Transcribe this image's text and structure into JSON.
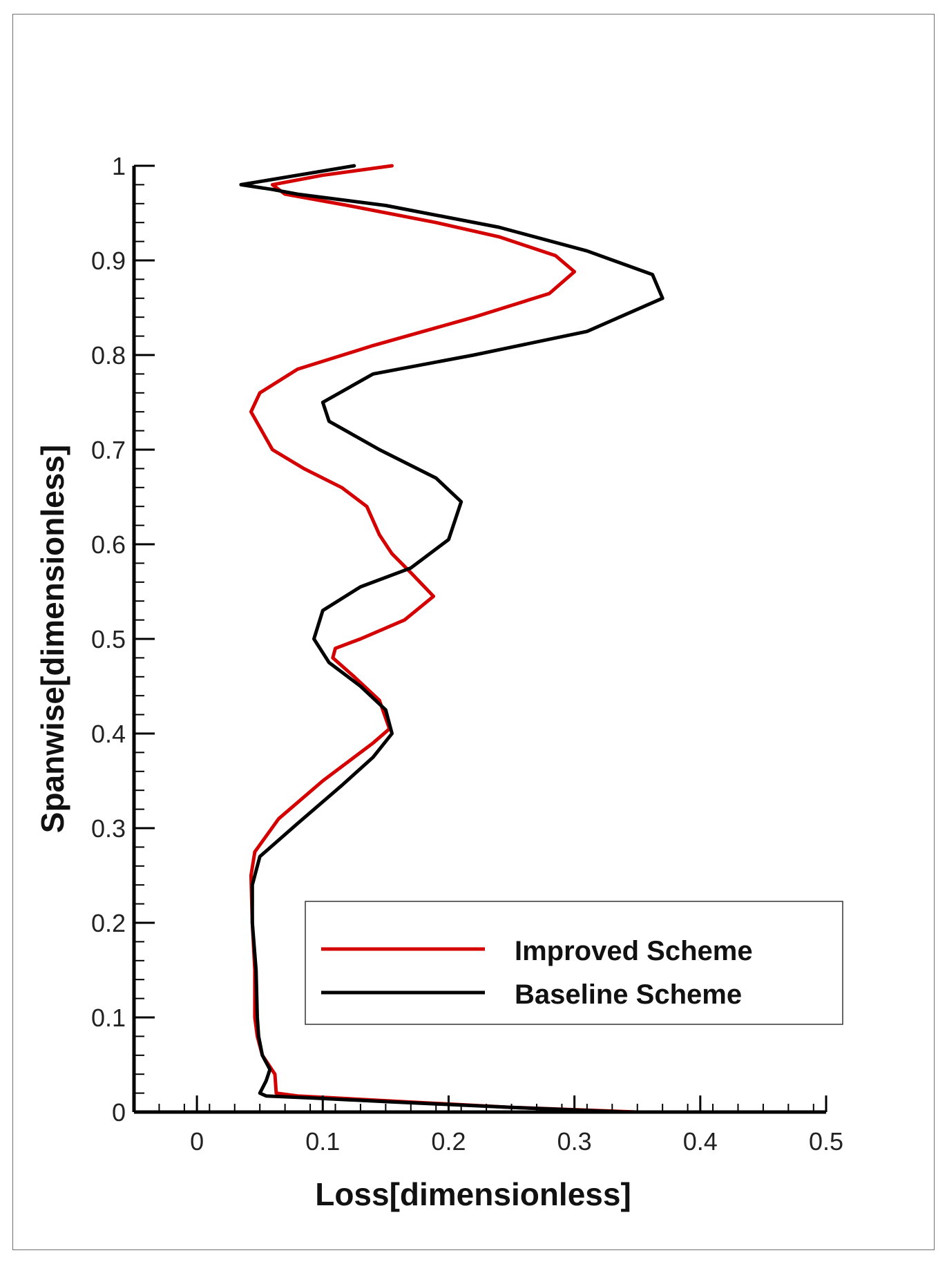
{
  "chart_data": {
    "type": "line",
    "title": "",
    "xlabel": "Loss[dimensionless]",
    "ylabel": "Spanwise[dimensionless]",
    "xlim": [
      -0.05,
      0.5
    ],
    "ylim": [
      0,
      1
    ],
    "x_ticks": [
      "0",
      "0.1",
      "0.2",
      "0.3",
      "0.4",
      "0.5"
    ],
    "y_ticks": [
      "0",
      "0.1",
      "0.2",
      "0.3",
      "0.4",
      "0.5",
      "0.6",
      "0.7",
      "0.8",
      "0.9",
      "1"
    ],
    "grid": false,
    "legend_position": "lower-right",
    "series": [
      {
        "name": "Improved Scheme",
        "color": "#d40000",
        "points": [
          [
            0.35,
            0.0
          ],
          [
            0.25,
            0.005
          ],
          [
            0.15,
            0.012
          ],
          [
            0.08,
            0.017
          ],
          [
            0.063,
            0.02
          ],
          [
            0.062,
            0.04
          ],
          [
            0.057,
            0.05
          ],
          [
            0.052,
            0.06
          ],
          [
            0.048,
            0.08
          ],
          [
            0.046,
            0.1
          ],
          [
            0.046,
            0.15
          ],
          [
            0.044,
            0.2
          ],
          [
            0.043,
            0.25
          ],
          [
            0.046,
            0.275
          ],
          [
            0.065,
            0.31
          ],
          [
            0.1,
            0.35
          ],
          [
            0.14,
            0.39
          ],
          [
            0.153,
            0.405
          ],
          [
            0.145,
            0.435
          ],
          [
            0.125,
            0.46
          ],
          [
            0.108,
            0.48
          ],
          [
            0.11,
            0.49
          ],
          [
            0.13,
            0.5
          ],
          [
            0.165,
            0.52
          ],
          [
            0.188,
            0.545
          ],
          [
            0.17,
            0.57
          ],
          [
            0.155,
            0.59
          ],
          [
            0.145,
            0.61
          ],
          [
            0.135,
            0.64
          ],
          [
            0.115,
            0.66
          ],
          [
            0.085,
            0.68
          ],
          [
            0.06,
            0.7
          ],
          [
            0.043,
            0.74
          ],
          [
            0.05,
            0.76
          ],
          [
            0.08,
            0.785
          ],
          [
            0.14,
            0.81
          ],
          [
            0.22,
            0.84
          ],
          [
            0.28,
            0.865
          ],
          [
            0.3,
            0.888
          ],
          [
            0.285,
            0.905
          ],
          [
            0.24,
            0.925
          ],
          [
            0.19,
            0.94
          ],
          [
            0.12,
            0.958
          ],
          [
            0.07,
            0.97
          ],
          [
            0.06,
            0.98
          ],
          [
            0.1,
            0.99
          ],
          [
            0.155,
            1.0
          ]
        ]
      },
      {
        "name": "Baseline Scheme",
        "color": "#000000",
        "points": [
          [
            0.34,
            0.0
          ],
          [
            0.25,
            0.005
          ],
          [
            0.15,
            0.011
          ],
          [
            0.09,
            0.015
          ],
          [
            0.055,
            0.017
          ],
          [
            0.05,
            0.02
          ],
          [
            0.055,
            0.033
          ],
          [
            0.058,
            0.045
          ],
          [
            0.052,
            0.06
          ],
          [
            0.049,
            0.08
          ],
          [
            0.048,
            0.1
          ],
          [
            0.047,
            0.15
          ],
          [
            0.044,
            0.2
          ],
          [
            0.044,
            0.24
          ],
          [
            0.05,
            0.27
          ],
          [
            0.08,
            0.305
          ],
          [
            0.115,
            0.345
          ],
          [
            0.14,
            0.375
          ],
          [
            0.155,
            0.4
          ],
          [
            0.15,
            0.425
          ],
          [
            0.13,
            0.45
          ],
          [
            0.105,
            0.475
          ],
          [
            0.093,
            0.5
          ],
          [
            0.1,
            0.53
          ],
          [
            0.13,
            0.555
          ],
          [
            0.17,
            0.575
          ],
          [
            0.2,
            0.605
          ],
          [
            0.21,
            0.645
          ],
          [
            0.19,
            0.67
          ],
          [
            0.145,
            0.7
          ],
          [
            0.105,
            0.73
          ],
          [
            0.1,
            0.75
          ],
          [
            0.14,
            0.78
          ],
          [
            0.22,
            0.8
          ],
          [
            0.31,
            0.825
          ],
          [
            0.37,
            0.86
          ],
          [
            0.362,
            0.885
          ],
          [
            0.31,
            0.91
          ],
          [
            0.24,
            0.935
          ],
          [
            0.15,
            0.958
          ],
          [
            0.08,
            0.97
          ],
          [
            0.06,
            0.975
          ],
          [
            0.035,
            0.98
          ],
          [
            0.08,
            0.99
          ],
          [
            0.125,
            1.0
          ]
        ]
      }
    ]
  }
}
